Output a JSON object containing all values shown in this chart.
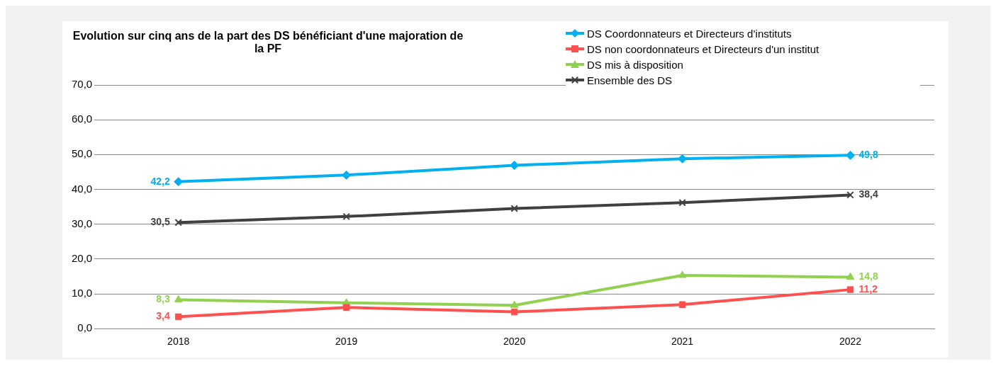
{
  "chart_data": {
    "type": "line",
    "title": "Evolution sur cinq ans de la part des DS bénéficiant d'une majoration de la PF",
    "categories": [
      "2018",
      "2019",
      "2020",
      "2021",
      "2022"
    ],
    "series": [
      {
        "name": "DS Coordonnateurs et Directeurs d’instituts",
        "color": "#00b0f0",
        "marker": "diamond",
        "values": [
          42.2,
          44.1,
          46.9,
          48.8,
          49.8
        ],
        "value_labels": [
          "42,2",
          null,
          null,
          null,
          "49,8"
        ]
      },
      {
        "name": "DS non coordonnateurs et Directeurs d'un institut",
        "color": "#ff5050",
        "marker": "square",
        "values": [
          3.4,
          6.1,
          4.8,
          6.9,
          11.2
        ],
        "value_labels": [
          "3,4",
          null,
          null,
          null,
          "11,2"
        ]
      },
      {
        "name": "DS mis à disposition",
        "color": "#92d050",
        "marker": "triangle",
        "values": [
          8.3,
          7.4,
          6.7,
          15.3,
          14.8
        ],
        "value_labels": [
          "8,3",
          null,
          null,
          null,
          "14,8"
        ]
      },
      {
        "name": "Ensemble des DS",
        "color": "#404040",
        "marker": "cross",
        "values": [
          30.5,
          32.2,
          34.5,
          36.2,
          38.4
        ],
        "value_labels": [
          "30,5",
          null,
          null,
          null,
          "38,4"
        ]
      }
    ],
    "ylim": [
      0,
      70
    ],
    "yticks": [
      {
        "value": 0,
        "label": "0,0"
      },
      {
        "value": 10,
        "label": "10,0"
      },
      {
        "value": 20,
        "label": "20,0"
      },
      {
        "value": 30,
        "label": "30,0"
      },
      {
        "value": 40,
        "label": "40,0"
      },
      {
        "value": 50,
        "label": "50,0"
      },
      {
        "value": 60,
        "label": "60,0"
      },
      {
        "value": 70,
        "label": "70,0"
      }
    ],
    "grid": "y",
    "legend": "top right",
    "line_style": "solid"
  }
}
